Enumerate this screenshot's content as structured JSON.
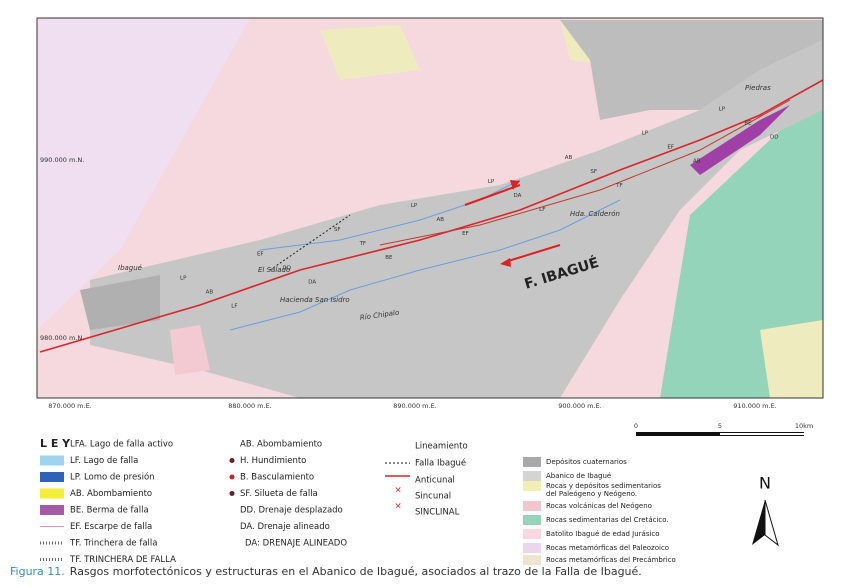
{
  "map": {
    "northings": [
      "990.000 m.N.",
      "980.000 m.N."
    ],
    "eastings": [
      "870.000 m.E.",
      "880.000 m.E.",
      "890.000 m.E.",
      "900.000 m.E.",
      "910.000 m.E."
    ],
    "places": [
      "Piedras",
      "Ibagué",
      "El Salado",
      "Hacienda San Isidro",
      "Río Chipalo",
      "Hda. Calderón"
    ],
    "fault_label": "F. IBAGUÉ",
    "features": [
      "LP",
      "AB",
      "LF",
      "EF",
      "DD",
      "DA",
      "SF",
      "TF",
      "BE",
      "LP",
      "AB",
      "EF",
      "LP",
      "DA",
      "LF",
      "AB",
      "SF",
      "TF",
      "LP",
      "EF",
      "AB",
      "LP",
      "BE",
      "DD"
    ]
  },
  "scale": {
    "ticks": [
      "0",
      "5",
      "10km"
    ]
  },
  "north": "N",
  "legend": {
    "title": "L E Y",
    "symbols": [
      "LFA. Lago de falla activo",
      "LF. Lago de falla",
      "LP. Lomo de presión",
      "AB. Abombamiento",
      "BE. Berma de falla",
      "EF. Escarpe de falla",
      "TF. Trinchera de falla",
      "TF. TRINCHERA DE FALLA"
    ],
    "features": [
      "AB. Abombamiento",
      "H. Hundimiento",
      "B. Basculamiento",
      "SF. Silueta de falla",
      "DD. Drenaje desplazado",
      "DA. Drenaje alineado",
      "DA: DRENAJE ALINEADO"
    ],
    "structures": [
      "Lineamiento",
      "Falla Ibagué",
      "Anticunal",
      "Sincunal",
      "SINCLINAL"
    ],
    "units": [
      "Depósitos cuaternarios",
      "Abanico de Ibagué",
      "Rocas y depósitos sedimentarios",
      "del Paleógeno y Neógeno.",
      "Rocas volcánicas del Neógeno",
      "Rocas sedimentarias del Cretácico.",
      "Batolito Ibagué de edad Jurásico",
      "Rocas metamórficas del Paleozoico",
      "Rocas metamórficas del Precámbrico"
    ]
  },
  "caption": {
    "label": "Figura 11.",
    "text": "Rasgos morfotectónicos y estructuras en el Abanico de Ibagué, asociados al trazo de la Falla de Ibagué."
  }
}
